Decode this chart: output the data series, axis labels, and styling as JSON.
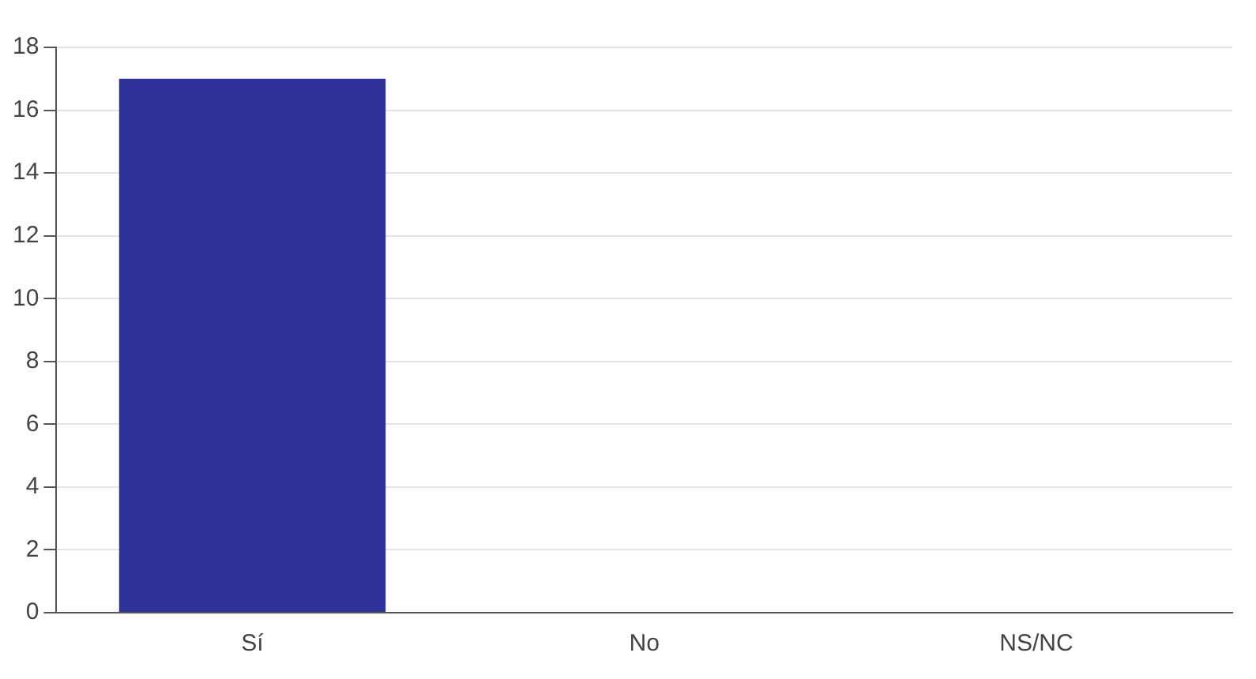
{
  "chart_data": {
    "type": "bar",
    "categories": [
      "Sí",
      "No",
      "NS/NC"
    ],
    "values": [
      17,
      0,
      0
    ],
    "color": "#2e3299",
    "ylim": [
      0,
      18
    ],
    "yticks": [
      0,
      2,
      4,
      6,
      8,
      10,
      12,
      14,
      16,
      18
    ],
    "grid": "y",
    "legend": false
  }
}
